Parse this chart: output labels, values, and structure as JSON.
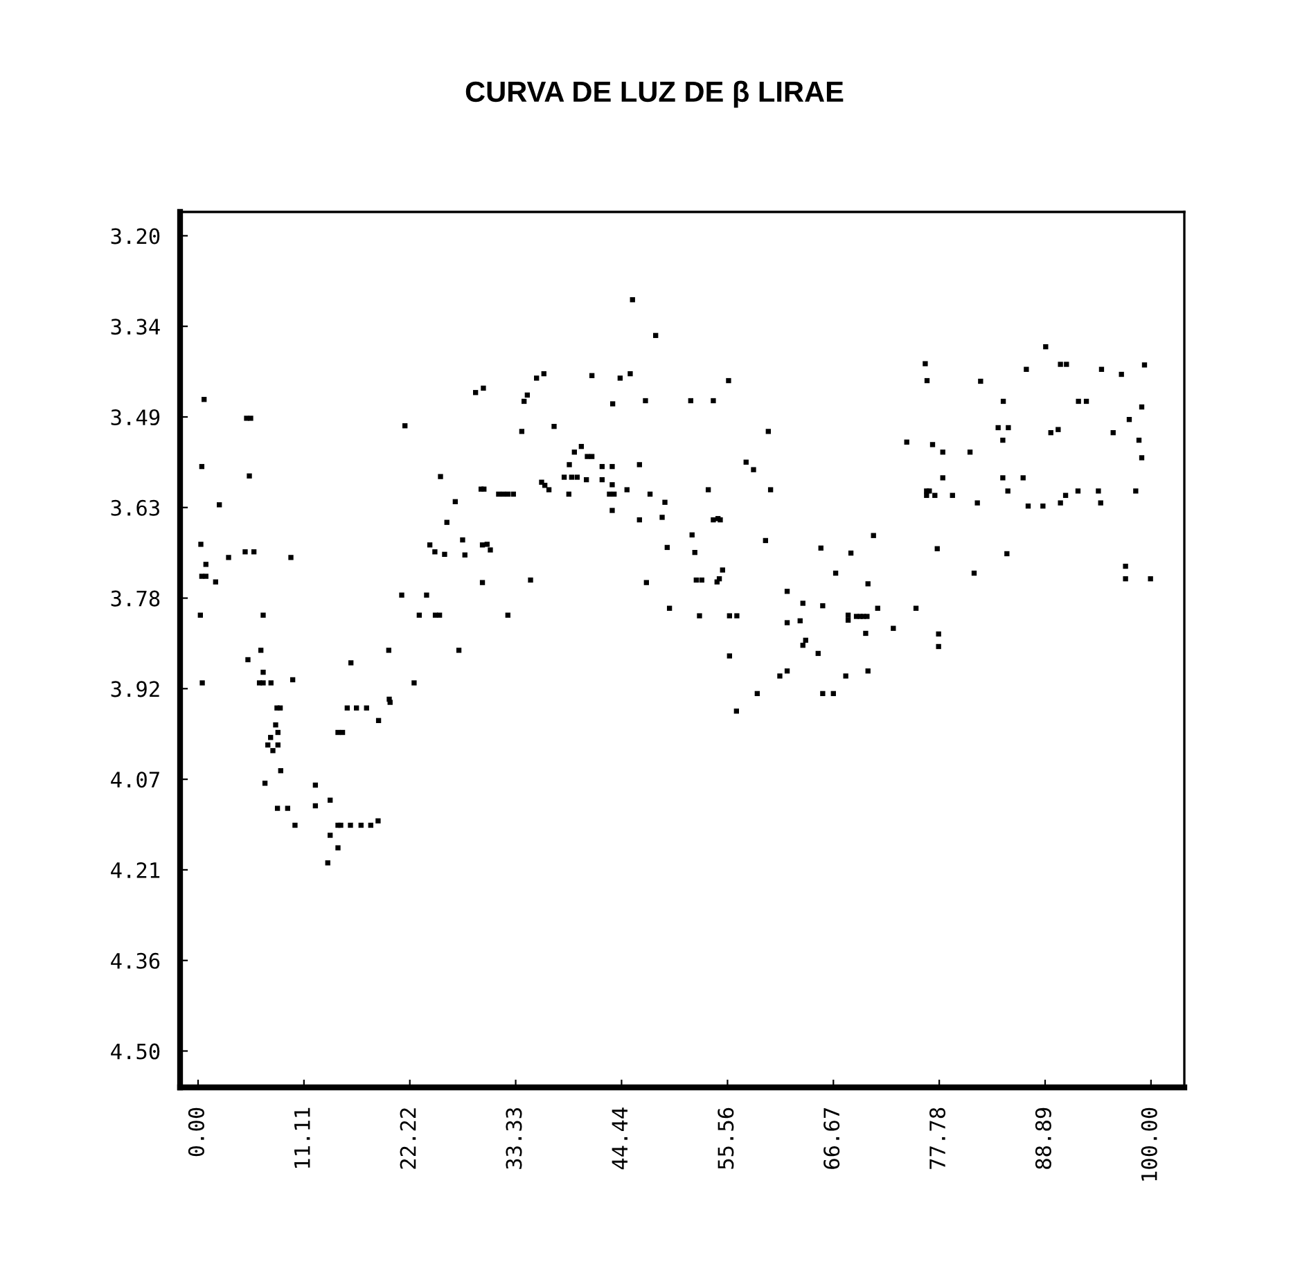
{
  "chart_data": {
    "type": "scatter",
    "title": "CURVA DE LUZ DE β LIRAE",
    "marker": "square",
    "grid": false,
    "xlim": [
      -1.89,
      103.5
    ],
    "ylim": [
      4.558,
      3.162
    ],
    "xticks": [
      {
        "value": 0,
        "label": "0.00"
      },
      {
        "value": 11.11,
        "label": "11.11"
      },
      {
        "value": 22.22,
        "label": "22.22"
      },
      {
        "value": 33.33,
        "label": "33.33"
      },
      {
        "value": 44.44,
        "label": "44.44"
      },
      {
        "value": 55.56,
        "label": "55.56"
      },
      {
        "value": 66.67,
        "label": "66.67"
      },
      {
        "value": 77.78,
        "label": "77.78"
      },
      {
        "value": 88.89,
        "label": "88.89"
      },
      {
        "value": 100,
        "label": "100.00"
      }
    ],
    "yticks": [
      {
        "value": 3.2,
        "label": "3.20"
      },
      {
        "value": 3.3444,
        "label": "3.34"
      },
      {
        "value": 3.4889,
        "label": "3.49"
      },
      {
        "value": 3.6333,
        "label": "3.63"
      },
      {
        "value": 3.7778,
        "label": "3.78"
      },
      {
        "value": 3.9222,
        "label": "3.92"
      },
      {
        "value": 4.0667,
        "label": "4.07"
      },
      {
        "value": 4.2111,
        "label": "4.21"
      },
      {
        "value": 4.3556,
        "label": "4.36"
      },
      {
        "value": 4.5,
        "label": "4.50"
      }
    ],
    "series": [
      {
        "color": "#000000",
        "x": [
          0.63,
          5.09,
          5.52,
          21.71,
          29.12,
          29.94,
          0.39,
          5.38,
          25.44,
          29.7,
          30.0,
          2.23,
          26.99,
          26.11,
          27.76,
          0.29,
          4.94,
          5.86,
          3.2,
          9.74,
          24.32,
          24.85,
          25.87,
          28.0,
          29.84,
          0.82,
          0.39,
          0.82,
          1.84,
          29.84,
          21.37,
          23.98,
          0.24,
          6.83,
          23.21,
          24.9,
          25.34,
          6.59,
          20.01,
          27.37,
          5.23,
          16.04,
          6.83,
          0.44,
          6.44,
          6.83,
          7.65,
          9.93,
          22.67,
          8.28,
          8.62,
          15.65,
          16.62,
          17.68,
          20.06,
          20.15,
          18.94,
          8.14,
          8.38,
          14.68,
          15.16,
          7.61,
          7.32,
          7.85,
          8.38,
          8.67,
          7.02,
          12.31,
          13.86,
          8.33,
          9.4,
          12.31,
          10.17,
          14.68,
          14.97,
          15.99,
          17.1,
          18.12,
          18.89,
          13.86,
          14.68,
          13.61,
          45.59,
          48.02,
          35.52,
          36.29,
          41.33,
          44.29,
          45.35,
          55.67,
          34.21,
          34.55,
          43.51,
          46.95,
          51.7,
          54.07,
          33.97,
          37.36,
          59.84,
          40.22,
          39.49,
          40.85,
          41.33,
          38.96,
          42.4,
          43.46,
          46.32,
          57.51,
          58.29,
          38.42,
          39.2,
          39.78,
          40.75,
          42.4,
          36.05,
          36.39,
          36.82,
          43.46,
          45.01,
          53.54,
          60.08,
          31.54,
          32.03,
          32.51,
          33.09,
          38.91,
          43.17,
          43.66,
          47.43,
          48.99,
          43.46,
          46.32,
          48.7,
          54.07,
          54.56,
          54.8,
          51.84,
          30.33,
          30.67,
          49.23,
          52.13,
          59.55,
          34.89,
          47.05,
          52.28,
          52.86,
          54.46,
          54.7,
          55.04,
          61.82,
          32.51,
          49.47,
          52.62,
          55.77,
          56.54,
          63.47,
          61.82,
          63.18,
          63.47,
          63.76,
          65.07,
          55.77,
          61.05,
          61.82,
          58.68,
          56.5,
          88.95,
          76.31,
          76.5,
          86.92,
          90.5,
          91.13,
          94.81,
          96.9,
          99.32,
          82.12,
          84.5,
          92.39,
          93.22,
          99.03,
          97.72,
          83.96,
          85.03,
          89.49,
          90.26,
          96.03,
          84.45,
          98.74,
          99.03,
          74.37,
          77.08,
          78.15,
          81.01,
          78.15,
          84.45,
          86.58,
          84.98,
          92.34,
          94.48,
          98.4,
          91.04,
          76.45,
          76.74,
          76.45,
          77.32,
          79.17,
          81.78,
          87.11,
          88.66,
          90.5,
          94.72,
          70.88,
          65.36,
          68.51,
          77.57,
          84.88,
          66.91,
          81.44,
          70.3,
          97.33,
          97.33,
          99.95,
          65.55,
          71.32,
          75.34,
          68.22,
          68.22,
          69.09,
          69.48,
          69.81,
          70.2,
          70.06,
          72.96,
          77.71,
          77.71,
          67.97,
          70.3,
          65.55,
          66.67
        ],
        "values": [
          3.461,
          3.491,
          3.491,
          3.503,
          3.45,
          3.443,
          3.568,
          3.583,
          3.584,
          3.604,
          3.604,
          3.629,
          3.624,
          3.657,
          3.685,
          3.692,
          3.704,
          3.704,
          3.713,
          3.713,
          3.693,
          3.704,
          3.708,
          3.709,
          3.693,
          3.724,
          3.743,
          3.743,
          3.752,
          3.753,
          3.773,
          3.773,
          3.805,
          3.805,
          3.805,
          3.805,
          3.805,
          3.861,
          3.861,
          3.861,
          3.876,
          3.881,
          3.896,
          3.913,
          3.913,
          3.913,
          3.913,
          3.908,
          3.913,
          3.953,
          3.953,
          3.953,
          3.953,
          3.953,
          3.939,
          3.944,
          3.973,
          3.98,
          3.992,
          3.992,
          3.992,
          4.0,
          4.012,
          4.021,
          4.012,
          4.053,
          4.073,
          4.076,
          4.1,
          4.113,
          4.113,
          4.109,
          4.14,
          4.14,
          4.14,
          4.14,
          4.14,
          4.14,
          4.133,
          4.156,
          4.176,
          4.2,
          3.302,
          3.359,
          3.427,
          3.42,
          3.423,
          3.427,
          3.42,
          3.431,
          3.464,
          3.454,
          3.468,
          3.463,
          3.463,
          3.463,
          3.512,
          3.504,
          3.512,
          3.536,
          3.545,
          3.552,
          3.552,
          3.565,
          3.568,
          3.568,
          3.565,
          3.561,
          3.573,
          3.585,
          3.585,
          3.585,
          3.589,
          3.589,
          3.593,
          3.598,
          3.605,
          3.597,
          3.605,
          3.605,
          3.605,
          3.612,
          3.612,
          3.612,
          3.612,
          3.612,
          3.612,
          3.612,
          3.612,
          3.625,
          3.638,
          3.653,
          3.649,
          3.653,
          3.651,
          3.653,
          3.677,
          3.692,
          3.701,
          3.697,
          3.705,
          3.686,
          3.749,
          3.753,
          3.749,
          3.749,
          3.752,
          3.747,
          3.733,
          3.767,
          3.805,
          3.794,
          3.806,
          3.806,
          3.806,
          3.786,
          3.817,
          3.814,
          3.853,
          3.845,
          3.866,
          3.87,
          3.902,
          3.894,
          3.93,
          3.958,
          3.377,
          3.404,
          3.431,
          3.413,
          3.405,
          3.405,
          3.413,
          3.421,
          3.406,
          3.432,
          3.464,
          3.464,
          3.464,
          3.473,
          3.493,
          3.506,
          3.506,
          3.514,
          3.509,
          3.514,
          3.526,
          3.526,
          3.554,
          3.529,
          3.533,
          3.545,
          3.545,
          3.586,
          3.586,
          3.586,
          3.607,
          3.607,
          3.607,
          3.607,
          3.614,
          3.607,
          3.607,
          3.614,
          3.614,
          3.614,
          3.626,
          3.631,
          3.631,
          3.626,
          3.626,
          3.678,
          3.698,
          3.706,
          3.699,
          3.707,
          3.738,
          3.738,
          3.755,
          3.727,
          3.747,
          3.747,
          3.79,
          3.794,
          3.794,
          3.805,
          3.813,
          3.807,
          3.807,
          3.807,
          3.807,
          3.834,
          3.826,
          3.835,
          3.855,
          3.902,
          3.894,
          3.93,
          3.93
        ]
      }
    ]
  }
}
